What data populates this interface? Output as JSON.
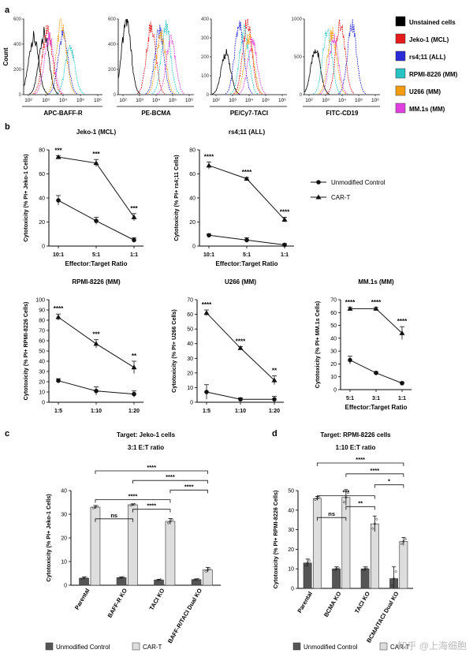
{
  "panel_labels": {
    "a": "a",
    "b": "b",
    "c": "c",
    "d": "d"
  },
  "watermark": "知乎 @上海细胞",
  "histograms": {
    "y_label": "Count",
    "tick_labels": [
      "10²",
      "10³",
      "10⁴",
      "10⁵",
      "10⁶"
    ],
    "legend": [
      {
        "label": "Unstained cells",
        "color": "#000000"
      },
      {
        "label": "Jeko-1 (MCL)",
        "color": "#e41a1c"
      },
      {
        "label": "rs4;11 (ALL)",
        "color": "#2a2ad8"
      },
      {
        "label": "RPMI-8226 (MM)",
        "color": "#27c3c3"
      },
      {
        "label": "U266 (MM)",
        "color": "#f39c12"
      },
      {
        "label": "MM.1s (MM)",
        "color": "#e040e0"
      }
    ],
    "panels": [
      {
        "xlabel": "APC-BAFF-R",
        "ymax": 600,
        "yticks": [
          "0",
          "200",
          "400",
          "600"
        ]
      },
      {
        "xlabel": "PE-BCMA",
        "ymax": 600,
        "yticks": [
          "0",
          "200",
          "400",
          "600"
        ]
      },
      {
        "xlabel": "PE/Cy7-TACI",
        "ymax": 400,
        "yticks": [
          "0",
          "100",
          "200",
          "300",
          "400"
        ]
      },
      {
        "xlabel": "FITC-CD19",
        "ymax": 1000,
        "yticks": [
          "0",
          "500",
          "1000"
        ]
      }
    ]
  },
  "chart_data": [
    {
      "type": "line",
      "title": "Jeko-1 (MCL)",
      "xlabel": "Effector:Target Ratio",
      "ylabel": "Cytotoxicity (% PI+ Jeko-1 Cells)",
      "categories": [
        "10:1",
        "5:1",
        "1:1"
      ],
      "ylim": [
        0,
        80
      ],
      "yticks": [
        0,
        20,
        40,
        60,
        80
      ],
      "series": [
        {
          "name": "Unmodified Control",
          "values": [
            38,
            21,
            5
          ],
          "errors": [
            4,
            3,
            2
          ]
        },
        {
          "name": "CAR-T",
          "values": [
            74,
            69,
            24
          ],
          "errors": [
            1,
            3,
            3
          ]
        }
      ],
      "significance": [
        "***",
        "***",
        "***"
      ]
    },
    {
      "type": "line",
      "title": "rs4;11 (ALL)",
      "xlabel": "Effector:Target Ratio",
      "ylabel": "Cytotoxicity (% PI+ rs4;11 Cells)",
      "categories": [
        "10:1",
        "5:1",
        "1:1"
      ],
      "ylim": [
        0,
        80
      ],
      "yticks": [
        0,
        20,
        40,
        60,
        80
      ],
      "series": [
        {
          "name": "Unmodified Control",
          "values": [
            9,
            5,
            1
          ],
          "errors": [
            1,
            2,
            1
          ]
        },
        {
          "name": "CAR-T",
          "values": [
            67,
            56,
            22
          ],
          "errors": [
            3,
            1,
            2
          ]
        }
      ],
      "significance": [
        "****",
        "****",
        "****"
      ]
    },
    {
      "type": "line",
      "title": "RPMI-8226 (MM)",
      "xlabel": "",
      "ylabel": "Cytotoxicity (% PI+ RPMI-8226 Cells)",
      "categories": [
        "1:5",
        "1:10",
        "1:20"
      ],
      "ylim": [
        0,
        100
      ],
      "yticks": [
        0,
        10,
        20,
        30,
        40,
        50,
        60,
        70,
        80,
        90,
        100
      ],
      "series": [
        {
          "name": "Unmodified Control",
          "values": [
            21,
            11,
            8
          ],
          "errors": [
            2,
            4,
            3
          ]
        },
        {
          "name": "CAR-T",
          "values": [
            83,
            57,
            34
          ],
          "errors": [
            3,
            4,
            6
          ]
        }
      ],
      "significance": [
        "****",
        "***",
        "**"
      ]
    },
    {
      "type": "line",
      "title": "U266 (MM)",
      "xlabel": "",
      "ylabel": "Cytotoxicity (% PI+ U266 Cells)",
      "categories": [
        "1:5",
        "1:10",
        "1:20"
      ],
      "ylim": [
        0,
        70
      ],
      "yticks": [
        0,
        10,
        20,
        30,
        40,
        50,
        60,
        70
      ],
      "series": [
        {
          "name": "Unmodified Control",
          "values": [
            7,
            2,
            2
          ],
          "errors": [
            5,
            1,
            2
          ]
        },
        {
          "name": "CAR-T",
          "values": [
            61,
            37,
            15
          ],
          "errors": [
            2,
            1,
            3
          ]
        }
      ],
      "significance": [
        "****",
        "****",
        "**"
      ]
    },
    {
      "type": "line",
      "title": "MM.1s (MM)",
      "xlabel": "Effector:Target Ratio",
      "ylabel": "Cytotoxicity (% PI+ MM.1s Cells)",
      "categories": [
        "5:1",
        "3:1",
        "1:1"
      ],
      "ylim": [
        0,
        70
      ],
      "yticks": [
        0,
        10,
        20,
        30,
        40,
        50,
        60,
        70
      ],
      "series": [
        {
          "name": "Unmodified Control",
          "values": [
            23,
            13,
            5
          ],
          "errors": [
            3,
            1,
            1
          ]
        },
        {
          "name": "CAR-T",
          "values": [
            63,
            63,
            44
          ],
          "errors": [
            1,
            1,
            5
          ]
        }
      ],
      "significance": [
        "****",
        "****",
        "****"
      ]
    },
    {
      "type": "bar",
      "title": "Target: Jeko-1 cells",
      "subtitle": "3:1 E:T ratio",
      "ylabel": "Cytotoxicity (% PI+ Jeko-1 Cells)",
      "categories": [
        "Parental",
        "BAFF-R KO",
        "TACI KO",
        "BAFF-R/TACI Dual KO"
      ],
      "ylim": [
        0,
        40
      ],
      "yticks": [
        0,
        10,
        20,
        30,
        40
      ],
      "series": [
        {
          "name": "Unmodified Control",
          "values": [
            3,
            3.2,
            2.2,
            2.4
          ],
          "errors": [
            0.5,
            0.3,
            0.3,
            0.3
          ]
        },
        {
          "name": "CAR-T",
          "values": [
            33,
            34,
            27,
            6.5
          ],
          "errors": [
            0.7,
            0.4,
            1.2,
            1
          ]
        }
      ],
      "comparisons": [
        {
          "from": 0,
          "to": 1,
          "label": "ns"
        },
        {
          "from": 0,
          "to": 2,
          "label": "****"
        },
        {
          "from": 1,
          "to": 2,
          "label": "****"
        },
        {
          "from": 0,
          "to": 3,
          "label": "****"
        },
        {
          "from": 1,
          "to": 3,
          "label": "****"
        },
        {
          "from": 2,
          "to": 3,
          "label": "****"
        }
      ]
    },
    {
      "type": "bar",
      "title": "Target: RPMI-8226 cells",
      "subtitle": "1:10 E:T ratio",
      "ylabel": "Cytotoxicity (% PI+ RPMI-8226 Cells)",
      "categories": [
        "Parental",
        "BCMA KO",
        "TACI KO",
        "BCMA/TACI Dual KO"
      ],
      "ylim": [
        0,
        50
      ],
      "yticks": [
        0,
        10,
        20,
        30,
        40,
        50
      ],
      "series": [
        {
          "name": "Unmodified Control",
          "values": [
            13,
            10,
            10,
            5
          ],
          "errors": [
            2,
            1,
            1,
            6
          ]
        },
        {
          "name": "CAR-T",
          "values": [
            46,
            46.5,
            33,
            24
          ],
          "errors": [
            1,
            4,
            4,
            2
          ]
        }
      ],
      "comparisons": [
        {
          "from": 0,
          "to": 1,
          "label": "ns"
        },
        {
          "from": 0,
          "to": 2,
          "label": "***"
        },
        {
          "from": 1,
          "to": 2,
          "label": "**"
        },
        {
          "from": 0,
          "to": 3,
          "label": "****"
        },
        {
          "from": 1,
          "to": 3,
          "label": "****"
        },
        {
          "from": 2,
          "to": 3,
          "label": "*"
        }
      ]
    }
  ],
  "legend_b": {
    "control": "Unmodified Control",
    "cart": "CAR-T"
  },
  "legend_cd": {
    "control": "Unmodified Control",
    "cart": "CAR-T"
  }
}
